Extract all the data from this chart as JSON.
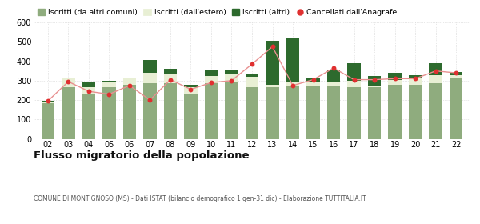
{
  "years": [
    "02",
    "03",
    "04",
    "05",
    "06",
    "07",
    "08",
    "09",
    "10",
    "11",
    "12",
    "13",
    "14",
    "15",
    "16",
    "17",
    "18",
    "19",
    "20",
    "21",
    "22"
  ],
  "iscritti_comuni": [
    185,
    265,
    235,
    265,
    280,
    285,
    285,
    230,
    285,
    295,
    265,
    265,
    275,
    275,
    275,
    265,
    265,
    280,
    280,
    285,
    315
  ],
  "iscritti_estero": [
    5,
    45,
    30,
    30,
    30,
    55,
    50,
    35,
    40,
    40,
    55,
    15,
    15,
    15,
    20,
    35,
    10,
    25,
    30,
    45,
    15
  ],
  "iscritti_altri": [
    5,
    5,
    30,
    5,
    5,
    65,
    25,
    15,
    30,
    20,
    15,
    225,
    230,
    20,
    60,
    90,
    50,
    35,
    20,
    60,
    15
  ],
  "cancellati": [
    195,
    295,
    245,
    230,
    275,
    200,
    305,
    255,
    290,
    300,
    385,
    475,
    275,
    305,
    365,
    305,
    305,
    310,
    310,
    350,
    340
  ],
  "color_comuni": "#8fac7e",
  "color_estero": "#e8efd4",
  "color_altri": "#2d6a2d",
  "color_cancellati": "#e03030",
  "color_cancellati_line": "#e89090",
  "ylim": [
    0,
    600
  ],
  "yticks": [
    0,
    100,
    200,
    300,
    400,
    500,
    600
  ],
  "title": "Flusso migratorio della popolazione",
  "subtitle": "COMUNE DI MONTIGNOSO (MS) - Dati ISTAT (bilancio demografico 1 gen-31 dic) - Elaborazione TUTTITALIA.IT",
  "legend_labels": [
    "Iscritti (da altri comuni)",
    "Iscritti (dall'estero)",
    "Iscritti (altri)",
    "Cancellati dall'Anagrafe"
  ],
  "bg_color": "#ffffff",
  "grid_color": "#d0d0d0"
}
